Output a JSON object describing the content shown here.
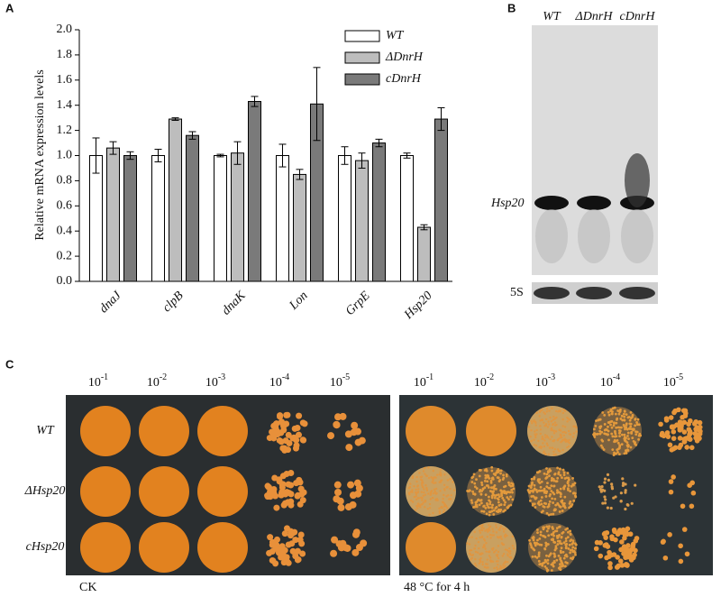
{
  "panel_labels": [
    "A",
    "B",
    "C"
  ],
  "chart_data": {
    "type": "bar",
    "y_label": "Relative mRNA expression levels",
    "categories": [
      "dnaJ",
      "clpB",
      "dnaK",
      "Lon",
      "GrpE",
      "Hsp20"
    ],
    "series": [
      {
        "name": "WT",
        "color": "#ffffff",
        "values": [
          1.0,
          1.0,
          1.0,
          1.0,
          1.0,
          1.0
        ],
        "errors": [
          0.14,
          0.05,
          0.01,
          0.09,
          0.07,
          0.02
        ]
      },
      {
        "name": "ΔDnrH",
        "color": "#bdbdbd",
        "values": [
          1.06,
          1.29,
          1.02,
          0.85,
          0.96,
          0.43
        ],
        "errors": [
          0.05,
          0.01,
          0.09,
          0.04,
          0.06,
          0.02
        ]
      },
      {
        "name": "cDnrH",
        "color": "#7a7a7a",
        "values": [
          1.0,
          1.16,
          1.43,
          1.41,
          1.1,
          1.29
        ],
        "errors": [
          0.03,
          0.03,
          0.04,
          0.29,
          0.03,
          0.09
        ]
      }
    ],
    "ylim": [
      0,
      2
    ],
    "yticks": [
      {
        "value": 0,
        "label": "0.0"
      },
      0.2,
      0.4,
      0.6,
      0.8,
      {
        "value": 1,
        "label": "1.0"
      },
      1.2,
      1.4,
      1.6,
      1.8,
      {
        "value": 2,
        "label": "2.0"
      }
    ]
  },
  "panel_b": {
    "lanes": [
      "WT",
      "ΔDnrH",
      "cDnrH"
    ],
    "bands": [
      "Hsp20",
      "5S"
    ]
  },
  "panel_c": {
    "dilutions": [
      {
        "base": "10",
        "exp": "-1"
      },
      {
        "base": "10",
        "exp": "-2"
      },
      {
        "base": "10",
        "exp": "-3"
      },
      {
        "base": "10",
        "exp": "-4"
      },
      {
        "base": "10",
        "exp": "-5"
      }
    ],
    "strains": [
      "WT",
      "ΔHsp20",
      "cHsp20"
    ],
    "conditions": [
      "CK",
      "48 °C for 4 h"
    ]
  }
}
